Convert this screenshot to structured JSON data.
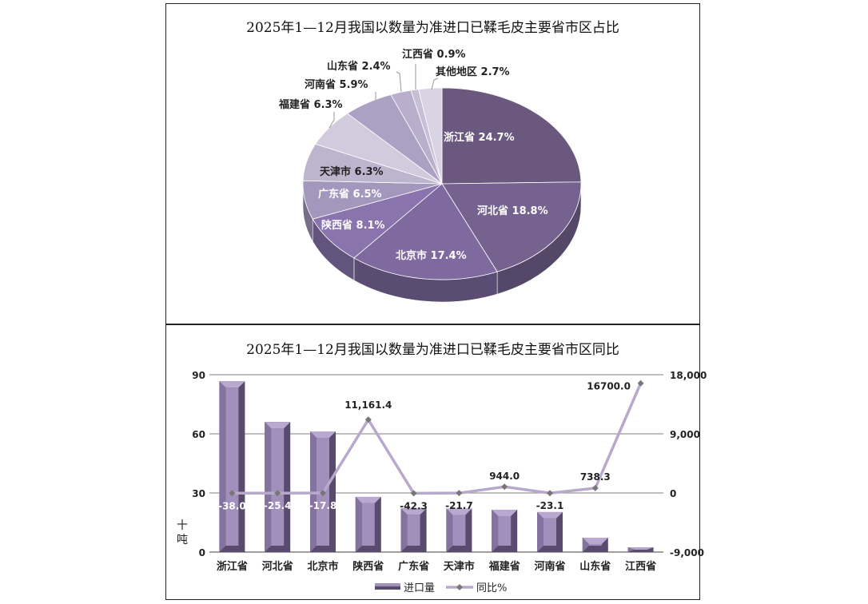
{
  "chart_data": [
    {
      "type": "pie",
      "title": "2025年1—12月我国以数量为准进口已鞣毛皮主要省市区占比",
      "slices": [
        {
          "label": "浙江省",
          "value": 24.7,
          "text": "浙江省 24.7%",
          "color": "#6a587f"
        },
        {
          "label": "河北省",
          "value": 18.8,
          "text": "河北省 18.8%",
          "color": "#76628f"
        },
        {
          "label": "北京市",
          "value": 17.4,
          "text": "北京市 17.4%",
          "color": "#7f6aa0"
        },
        {
          "label": "陕西省",
          "value": 8.1,
          "text": "陕西省 8.1%",
          "color": "#8a74ae"
        },
        {
          "label": "广东省",
          "value": 6.5,
          "text": "广东省 6.5%",
          "color": "#a497bd"
        },
        {
          "label": "天津市",
          "value": 6.3,
          "text": "天津市 6.3%",
          "color": "#bdb4ce"
        },
        {
          "label": "福建省",
          "value": 6.3,
          "text": "福建省 6.3%",
          "color": "#d2cbdd"
        },
        {
          "label": "河南省",
          "value": 5.9,
          "text": "河南省 5.9%",
          "color": "#aba1c2"
        },
        {
          "label": "山东省",
          "value": 2.4,
          "text": "山东省 2.4%",
          "color": "#b9afcc"
        },
        {
          "label": "江西省",
          "value": 0.9,
          "text": "江西省 0.9%",
          "color": "#c7bfd7"
        },
        {
          "label": "其他地区",
          "value": 2.7,
          "text": "其他地区 2.7%",
          "color": "#d9d4e3"
        }
      ]
    },
    {
      "type": "bar+line",
      "title": "2025年1—12月我国以数量为准进口已鞣毛皮主要省市区同比",
      "categories": [
        "浙江省",
        "河北省",
        "北京市",
        "陕西省",
        "广东省",
        "天津市",
        "福建省",
        "河南省",
        "山东省",
        "江西省"
      ],
      "series": [
        {
          "name": "进口量",
          "axis": "left",
          "values": [
            86.7,
            66.0,
            61.2,
            28.0,
            22.2,
            22.1,
            21.5,
            20.3,
            7.3,
            2.4
          ],
          "color": "#7a6a94"
        },
        {
          "name": "同比%",
          "axis": "right",
          "values": [
            -38.0,
            -25.4,
            -17.8,
            11161.4,
            -42.3,
            -21.7,
            944.0,
            -23.1,
            738.3,
            16700.0
          ],
          "labels": [
            "-38.0",
            "-25.4",
            "-17.8",
            "11,161.4",
            "-42.3",
            "-21.7",
            "944.0",
            "-23.1",
            "738.3",
            "16700.0"
          ],
          "color": "#b8a9cc"
        }
      ],
      "ylabel": "十吨",
      "ylim": [
        0,
        90
      ],
      "yticks": [
        "0",
        "30",
        "60",
        "90"
      ],
      "y2lim": [
        -9000,
        18000
      ],
      "y2ticks": [
        "-9,000",
        "0",
        "9,000",
        "18,000"
      ],
      "grid": true,
      "legend": "bottom"
    }
  ]
}
